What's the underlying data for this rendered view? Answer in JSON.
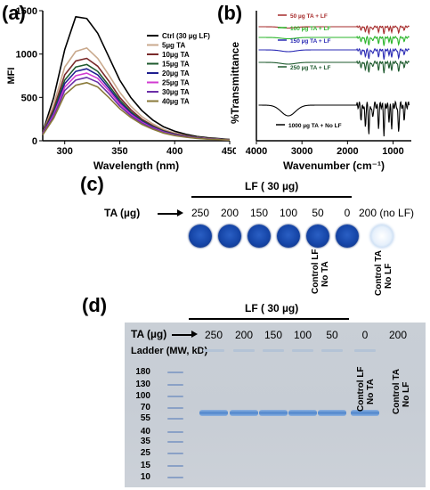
{
  "panels": {
    "a": {
      "letter": "(a)",
      "chart_data": {
        "type": "line",
        "xlabel": "Wavelength (nm)",
        "ylabel": "MFI",
        "xlim": [
          280,
          450
        ],
        "ylim": [
          0,
          1500
        ],
        "xticks": [
          300,
          350,
          400,
          450
        ],
        "yticks": [
          0,
          500,
          1000,
          1500
        ],
        "x": [
          280,
          290,
          300,
          310,
          320,
          330,
          340,
          350,
          360,
          370,
          380,
          390,
          400,
          410,
          420,
          430,
          440,
          450
        ],
        "series": [
          {
            "name": "Ctrl (30 µg LF)",
            "color": "#000000",
            "values": [
              100,
              500,
              1050,
              1430,
              1410,
              1240,
              970,
              700,
              500,
              350,
              240,
              160,
              110,
              75,
              50,
              35,
              25,
              15
            ]
          },
          {
            "name": "5µg TA",
            "color": "#c9a98d",
            "values": [
              90,
              420,
              850,
              1030,
              1070,
              950,
              760,
              560,
              400,
              280,
              195,
              130,
              90,
              60,
              40,
              28,
              20,
              12
            ]
          },
          {
            "name": "10µg TA",
            "color": "#7a2a2a",
            "values": [
              85,
              370,
              760,
              920,
              950,
              860,
              690,
              500,
              360,
              250,
              175,
              115,
              80,
              55,
              37,
              25,
              18,
              11
            ]
          },
          {
            "name": "15µg TA",
            "color": "#1e5a2e",
            "values": [
              80,
              340,
              700,
              850,
              880,
              800,
              640,
              470,
              335,
              235,
              165,
              110,
              75,
              50,
              35,
              24,
              17,
              10
            ]
          },
          {
            "name": "20µg TA",
            "color": "#1f1f8f",
            "values": [
              78,
              320,
              660,
              800,
              830,
              760,
              610,
              445,
              320,
              225,
              158,
              105,
              72,
              48,
              33,
              23,
              16,
              10
            ]
          },
          {
            "name": "25µg TA",
            "color": "#d23bd2",
            "values": [
              75,
              300,
              620,
              750,
              780,
              720,
              580,
              425,
              305,
              215,
              150,
              100,
              68,
              46,
              32,
              22,
              15,
              9
            ]
          },
          {
            "name": "30µg TA",
            "color": "#6b2fa8",
            "values": [
              72,
              280,
              580,
              700,
              730,
              675,
              545,
              400,
              290,
              205,
              143,
              95,
              65,
              44,
              30,
              21,
              14,
              9
            ]
          },
          {
            "name": "40µg TA",
            "color": "#8a7a3a",
            "values": [
              68,
              260,
              530,
              640,
              670,
              620,
              500,
              370,
              270,
              190,
              133,
              88,
              60,
              41,
              28,
              19,
              13,
              8
            ]
          }
        ]
      }
    },
    "b": {
      "letter": "(b)",
      "chart_data": {
        "type": "line",
        "xlabel": "Wavenumber (cm⁻¹)",
        "ylabel": "%Transmittance",
        "xlim": [
          4000,
          600
        ],
        "xticks": [
          4000,
          3000,
          2000,
          1000
        ],
        "series": [
          {
            "name": "50 µg TA + LF",
            "color": "#a62b2b"
          },
          {
            "name": "100 µg TA + LF",
            "color": "#2bb52b"
          },
          {
            "name": "150 µg TA + LF",
            "color": "#2b2bb5"
          },
          {
            "name": "250 µg TA + LF",
            "color": "#1e5a2e"
          },
          {
            "name": "1000 µg TA + No LF",
            "color": "#000000"
          }
        ]
      }
    },
    "c": {
      "letter": "(c)",
      "group_label": "LF ( 30 µg)",
      "row_label": "TA (µg)",
      "amounts": [
        "250",
        "200",
        "150",
        "100",
        "50",
        "0"
      ],
      "extra_amount": "200 (no LF)",
      "control_lf": [
        "Control LF",
        "No TA"
      ],
      "control_ta": [
        "Control TA",
        "No LF"
      ]
    },
    "d": {
      "letter": "(d)",
      "group_label": "LF ( 30 µg)",
      "row_label": "TA (µg)",
      "amounts": [
        "250",
        "200",
        "150",
        "100",
        "50",
        "0",
        "200"
      ],
      "ladder_label": "Ladder (MW, kD)",
      "ladder": [
        "180",
        "130",
        "100",
        "70",
        "55",
        "40",
        "35",
        "25",
        "15",
        "10"
      ],
      "control_lf": [
        "Control LF",
        "No TA"
      ],
      "control_ta": [
        "Control TA",
        "No LF"
      ]
    }
  }
}
